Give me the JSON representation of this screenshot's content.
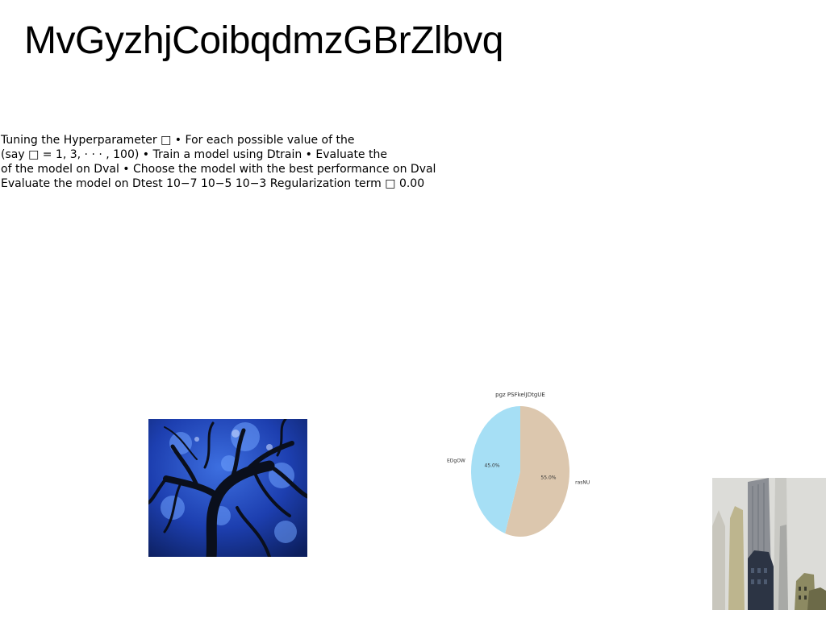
{
  "slide": {
    "title": "MvGyzhjCoibqdmzGBrZlbvq",
    "body_lines": [
      "Tuning the Hyperparameter □ • For each possible value of the",
      "(say □ = 1, 3, · · · , 100) • Train a model using Dtrain • Evaluate the",
      "of the model on Dval • Choose the model with the best performance on Dval",
      "Evaluate the model on Dtest 10−7 10−5 10−3 Regularization term □ 0.00"
    ]
  },
  "chart_data": {
    "type": "pie",
    "title": "pgz PSFkelJDtgUE",
    "slices": [
      {
        "label": "rasNU",
        "value": 55.0,
        "pct_label": "55.0%",
        "color": "#dcc7ae"
      },
      {
        "label": "EDgOW",
        "value": 45.0,
        "pct_label": "45.0%",
        "color": "#a6dff5"
      }
    ]
  },
  "images": {
    "tree": "blue-tree-photo",
    "city": "skyscraper-photo"
  }
}
